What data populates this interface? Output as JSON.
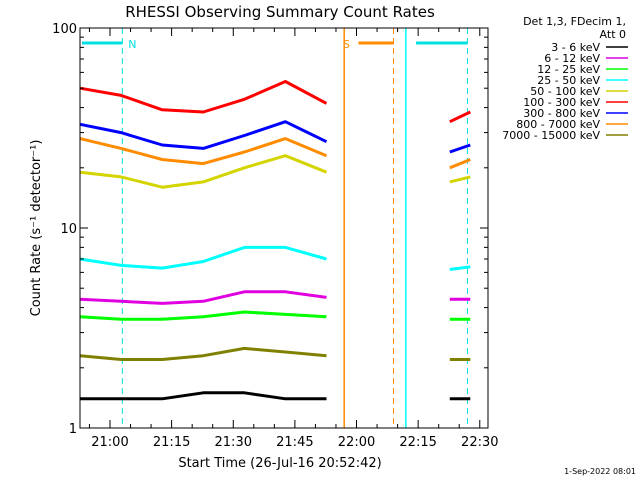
{
  "chart_data": {
    "type": "line",
    "title": "RHESSI Observing Summary Count Rates",
    "xlabel": "Start Time (26-Jul-16 20:52:42)",
    "ylabel": "Count Rate (s⁻¹ detector⁻¹)",
    "yscale": "log",
    "ylim": [
      1,
      100
    ],
    "xlim": [
      "20:52:42",
      "22:32:00"
    ],
    "x_ticks": [
      "21:00",
      "21:15",
      "21:30",
      "21:45",
      "22:00",
      "22:15",
      "22:30"
    ],
    "y_ticks": [
      "1",
      "10",
      "100"
    ],
    "legend_header": [
      "Det 1,3, FDecim 1,",
      "Att 0"
    ],
    "legend_position": "right",
    "timestamp": "1-Sep-2022 08:01",
    "data_gap": [
      "21:57",
      "22:12"
    ],
    "x_minutes_from_start": [
      0,
      10,
      20,
      30,
      40,
      50,
      60,
      65,
      80,
      90,
      95
    ],
    "series": [
      {
        "name": "3 - 6 keV",
        "color": "#000000",
        "values": [
          1.4,
          1.4,
          1.4,
          1.5,
          1.5,
          1.4,
          1.4,
          null,
          null,
          1.4,
          1.4
        ]
      },
      {
        "name": "6 - 12 keV",
        "color": "#e000e0",
        "values": [
          4.4,
          4.3,
          4.2,
          4.3,
          4.8,
          4.8,
          4.5,
          null,
          null,
          4.4,
          4.4
        ]
      },
      {
        "name": "12 - 25 keV",
        "color": "#00ff00",
        "values": [
          3.6,
          3.5,
          3.5,
          3.6,
          3.8,
          3.7,
          3.6,
          null,
          null,
          3.5,
          3.5
        ]
      },
      {
        "name": "25 - 50 keV",
        "color": "#00ffff",
        "values": [
          7.0,
          6.5,
          6.3,
          6.8,
          8.0,
          8.0,
          7.0,
          null,
          null,
          6.2,
          6.4
        ]
      },
      {
        "name": "50 - 100 keV",
        "color": "#d4d400",
        "values": [
          19,
          18,
          16,
          17,
          20,
          23,
          19,
          null,
          null,
          17,
          18
        ]
      },
      {
        "name": "100 - 300 keV",
        "color": "#ff0000",
        "values": [
          50,
          46,
          39,
          38,
          44,
          54,
          42,
          null,
          null,
          34,
          38
        ]
      },
      {
        "name": "300 - 800 keV",
        "color": "#0000ff",
        "values": [
          33,
          30,
          26,
          25,
          29,
          34,
          27,
          null,
          null,
          24,
          26
        ]
      },
      {
        "name": "800 - 7000 keV",
        "color": "#ff8c00",
        "values": [
          28,
          25,
          22,
          21,
          24,
          28,
          23,
          null,
          null,
          20,
          22
        ]
      },
      {
        "name": "7000 - 15000 keV",
        "color": "#808000",
        "values": [
          2.3,
          2.2,
          2.2,
          2.3,
          2.5,
          2.4,
          2.3,
          null,
          null,
          2.2,
          2.2
        ]
      }
    ],
    "annotations": [
      {
        "label": "N",
        "color": "#00e0e0",
        "start": "20:52:42",
        "end": "21:03"
      },
      {
        "label": "S",
        "color": "#ff8c00",
        "start": "22:00",
        "end": "22:09"
      },
      {
        "label": "",
        "color": "#00e0e0",
        "start": "22:14",
        "end": "22:27"
      }
    ]
  }
}
